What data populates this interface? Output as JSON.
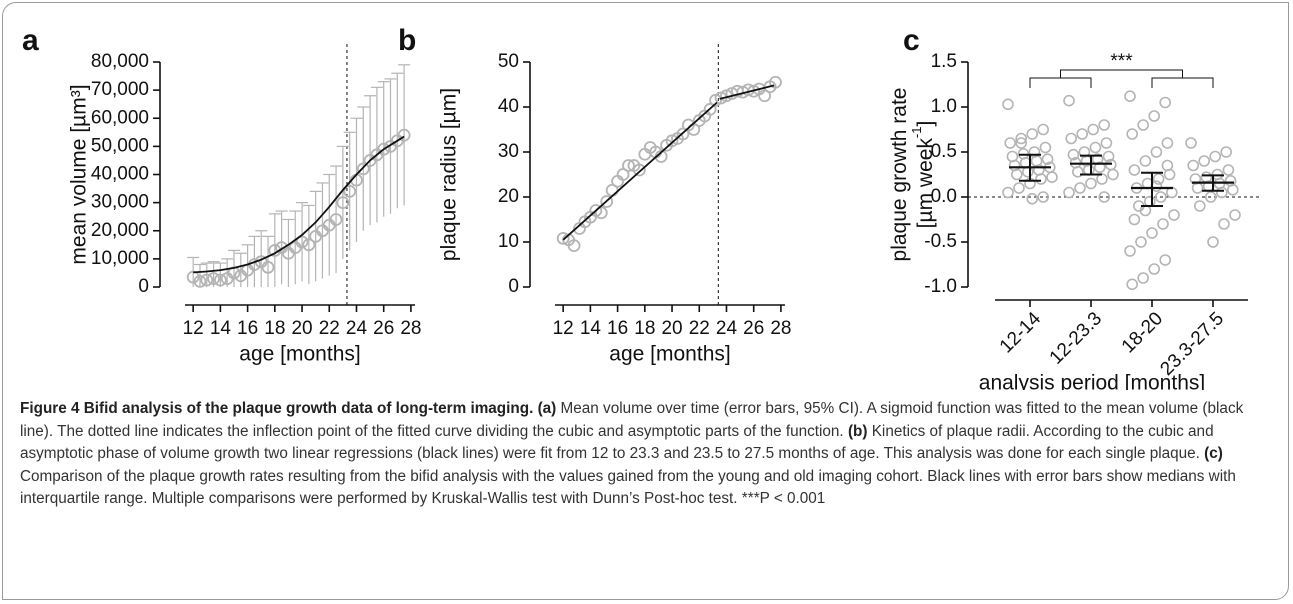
{
  "chart_data": [
    {
      "type": "scatter",
      "panel": "a",
      "xlabel": "age [months]",
      "ylabel": "mean volume [µm³]",
      "xlim": [
        11.4,
        28.3
      ],
      "xticks": [
        12,
        14,
        16,
        18,
        20,
        22,
        24,
        26,
        28
      ],
      "ylim": [
        0,
        80000
      ],
      "yticks": [
        0,
        {
          "value": 10000,
          "label": "10,000"
        },
        {
          "value": 20000,
          "label": "20,000"
        },
        {
          "value": 30000,
          "label": "30,000"
        },
        {
          "value": 40000,
          "label": "40,000"
        },
        {
          "value": 50000,
          "label": "50,000"
        },
        {
          "value": 60000,
          "label": "60,000"
        },
        {
          "value": 70000,
          "label": "70,000"
        },
        {
          "value": 80000,
          "label": "80,000"
        }
      ],
      "color": "#b4b4b4",
      "fit_color": "#111111",
      "vline": 23.3,
      "x": [
        12,
        12.5,
        13,
        13.5,
        14,
        14.5,
        15,
        15.5,
        16,
        16.5,
        17,
        17.5,
        18,
        18.5,
        19,
        19.5,
        20,
        20.5,
        21,
        21.5,
        22,
        22.5,
        23,
        23.5,
        24,
        24.5,
        25,
        25.5,
        26,
        26.5,
        27,
        27.5
      ],
      "values": [
        3500,
        2000,
        2500,
        3000,
        2500,
        3000,
        5000,
        4000,
        6000,
        8000,
        9000,
        7000,
        13000,
        14000,
        12000,
        14000,
        16000,
        15000,
        18000,
        20000,
        22000,
        24000,
        30000,
        34000,
        38000,
        42000,
        45000,
        47000,
        49000,
        50000,
        52000,
        54000
      ],
      "errors": [
        7000,
        6000,
        6000,
        6000,
        6000,
        7000,
        8000,
        8000,
        9000,
        10000,
        11000,
        11000,
        13000,
        13000,
        12000,
        13000,
        14000,
        14000,
        16000,
        17000,
        18000,
        19000,
        20000,
        21000,
        22000,
        22000,
        23000,
        24000,
        24000,
        24000,
        24000,
        25000
      ],
      "fits": [
        {
          "x": [
            12,
            13,
            14,
            15,
            16,
            17,
            18,
            19,
            20,
            21,
            22,
            23,
            24,
            25,
            26,
            27,
            27.5
          ],
          "values": [
            5200,
            5500,
            6000,
            6800,
            8000,
            9700,
            12000,
            15000,
            18500,
            23000,
            28500,
            34500,
            40000,
            45000,
            49000,
            52000,
            53500
          ]
        }
      ]
    },
    {
      "type": "scatter",
      "panel": "b",
      "xlabel": "age [months]",
      "ylabel": "plaque radius [µm]",
      "xlim": [
        11.4,
        28.3
      ],
      "xticks": [
        12,
        14,
        16,
        18,
        20,
        22,
        24,
        26,
        28
      ],
      "ylim": [
        0,
        50
      ],
      "yticks": [
        0,
        10,
        20,
        30,
        40,
        50
      ],
      "color": "#b4b4b4",
      "fit_color": "#111111",
      "vline": 23.4,
      "x": [
        12,
        12.4,
        12.8,
        13.2,
        13.6,
        14,
        14.4,
        14.8,
        15.2,
        15.6,
        16,
        16.4,
        16.8,
        17.2,
        17.6,
        18,
        18.4,
        18.8,
        19.2,
        19.6,
        20,
        20.4,
        20.8,
        21.2,
        21.6,
        22,
        22.4,
        22.8,
        23.2,
        23.6,
        24,
        24.4,
        24.8,
        25.2,
        25.6,
        26,
        26.4,
        26.8,
        27.2,
        27.6
      ],
      "values": [
        10.8,
        10.5,
        9.2,
        13,
        14.5,
        15.5,
        17,
        16.5,
        19,
        21.5,
        23.5,
        25,
        27,
        27,
        26,
        29.5,
        31,
        30,
        29,
        31.5,
        32.5,
        33,
        34,
        36,
        35,
        37,
        38,
        39.5,
        41.5,
        42,
        42.5,
        43,
        43.5,
        43.3,
        43.8,
        43.5,
        44,
        42.5,
        44.5,
        45.5
      ],
      "fits": [
        {
          "x": [
            12,
            23.3
          ],
          "values": [
            10.5,
            41
          ]
        },
        {
          "x": [
            23.5,
            27.5
          ],
          "values": [
            41.8,
            44.8
          ]
        }
      ]
    },
    {
      "type": "strip",
      "panel": "c",
      "xlabel": "analysis period [months]",
      "ylabel": {
        "line1": "plaque growth rate",
        "line2": "[µm week",
        "sup": "-1",
        "end": "]"
      },
      "ylim": [
        -1,
        1.5
      ],
      "yticks": [
        {
          "value": -1,
          "label": "-1.0"
        },
        -0.5,
        {
          "value": 0,
          "label": "0.0"
        },
        0.5,
        {
          "value": 1,
          "label": "1.0"
        },
        1.5
      ],
      "color": "#b4b4b4",
      "stat_color": "#111111",
      "categories": [
        "12-14",
        "12-23.3",
        "18-20",
        "23.3-27.5"
      ],
      "values": [
        [
          1.03,
          0.75,
          0.7,
          0.65,
          0.6,
          0.55,
          0.5,
          0.48,
          0.45,
          0.42,
          0.4,
          0.38,
          0.35,
          0.33,
          0.3,
          0.28,
          0.25,
          0.22,
          0.2,
          0.15,
          0.1,
          0.05,
          0.0,
          -0.02,
          0.6
        ],
        [
          1.07,
          0.8,
          0.75,
          0.7,
          0.65,
          0.6,
          0.55,
          0.5,
          0.47,
          0.45,
          0.42,
          0.4,
          0.38,
          0.36,
          0.33,
          0.3,
          0.28,
          0.25,
          0.2,
          0.15,
          0.1,
          0.05,
          0.0
        ],
        [
          1.12,
          1.05,
          0.9,
          0.8,
          0.7,
          0.6,
          0.5,
          0.4,
          0.3,
          0.25,
          0.2,
          0.15,
          0.1,
          0.05,
          0.0,
          -0.05,
          -0.1,
          -0.2,
          -0.3,
          -0.4,
          -0.5,
          -0.6,
          -0.7,
          -0.8,
          -0.9,
          -0.97,
          0.35,
          0.12,
          -0.15,
          -0.25
        ],
        [
          0.6,
          0.5,
          0.45,
          0.4,
          0.35,
          0.3,
          0.25,
          0.22,
          0.2,
          0.18,
          0.15,
          0.12,
          0.1,
          0.08,
          0.05,
          0.0,
          -0.1,
          -0.2,
          -0.3,
          -0.5
        ]
      ],
      "median": [
        0.33,
        0.37,
        0.1,
        0.16
      ],
      "q1": [
        0.18,
        0.25,
        -0.1,
        0.07
      ],
      "q3": [
        0.47,
        0.46,
        0.27,
        0.24
      ],
      "annotation": "***"
    }
  ],
  "caption": {
    "segments": [
      {
        "text": "Figure 4 Bifid analysis of the plaque growth data of long-term imaging. (a)",
        "bold": true
      },
      {
        "text": " Mean volume over time (error bars, 95% CI). A sigmoid function was fitted to the mean volume (black line). The dotted line indicates the inflection point of the fitted curve dividing the cubic and asymptotic parts of the function. ",
        "bold": false
      },
      {
        "text": "(b)",
        "bold": true
      },
      {
        "text": " Kinetics of plaque radii. According to the cubic and asymptotic phase of volume growth two linear regressions (black lines) were fit from 12 to 23.3 and 23.5 to 27.5 months of age. This analysis was done for each single plaque. ",
        "bold": false
      },
      {
        "text": "(c)",
        "bold": true
      },
      {
        "text": " Comparison of the plaque growth rates resulting from the bifid analysis with the values gained from the young and old imaging cohort. Black lines with error bars show medians with interquartile range. Multiple comparisons were performed by Kruskal-Wallis test with Dunn’s Post-hoc test. ***P < 0.001",
        "bold": false
      }
    ]
  }
}
